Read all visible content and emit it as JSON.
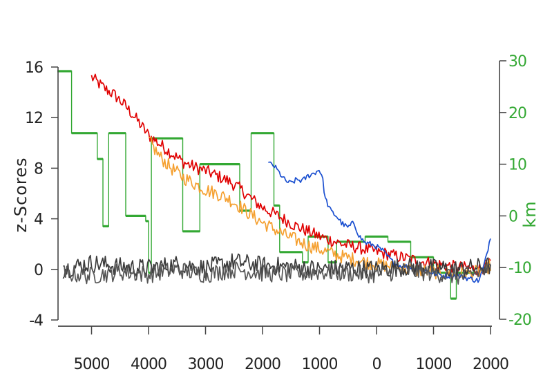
{
  "chart_data": {
    "type": "line",
    "title": "",
    "xlabel": "",
    "ylabel": "z-Scores",
    "y2label": "km",
    "x_axis": {
      "range": [
        -5600,
        2000
      ],
      "ticks": [
        -5000,
        -4000,
        -3000,
        -2000,
        -1000,
        0,
        1000,
        2000
      ],
      "tick_labels": [
        "5000",
        "4000",
        "3000",
        "2000",
        "1000",
        "0",
        "1000",
        "2000"
      ]
    },
    "y_axis": {
      "range": [
        -4,
        16
      ],
      "ticks": [
        -4,
        0,
        4,
        8,
        12,
        16
      ],
      "tick_labels": [
        "-4",
        "0",
        "4",
        "8",
        "12",
        "16"
      ]
    },
    "y2_axis": {
      "range": [
        -20,
        30
      ],
      "ticks": [
        -20,
        -10,
        0,
        10,
        20,
        30
      ],
      "tick_labels": [
        "-20",
        "-10",
        "0",
        "10",
        "20",
        "30"
      ],
      "color": "#33a833"
    },
    "grid": false,
    "legend": "none",
    "series": [
      {
        "color": "#e00000",
        "axis": "left",
        "points": [
          [
            -5000,
            15.2
          ],
          [
            -4800,
            14.4
          ],
          [
            -4600,
            13.8
          ],
          [
            -4400,
            12.9
          ],
          [
            -4200,
            11.8
          ],
          [
            -4000,
            10.6
          ],
          [
            -3800,
            9.9
          ],
          [
            -3600,
            9.2
          ],
          [
            -3400,
            8.5
          ],
          [
            -3200,
            8.1
          ],
          [
            -3000,
            7.8
          ],
          [
            -2800,
            7.4
          ],
          [
            -2600,
            7.0
          ],
          [
            -2400,
            6.4
          ],
          [
            -2200,
            5.6
          ],
          [
            -2000,
            4.9
          ],
          [
            -1800,
            4.4
          ],
          [
            -1600,
            3.9
          ],
          [
            -1400,
            3.4
          ],
          [
            -1200,
            3.0
          ],
          [
            -1000,
            2.6
          ],
          [
            -800,
            2.3
          ],
          [
            -600,
            2.0
          ],
          [
            -400,
            1.8
          ],
          [
            -200,
            1.6
          ],
          [
            0,
            1.4
          ],
          [
            200,
            1.2
          ],
          [
            400,
            1.0
          ],
          [
            600,
            0.8
          ],
          [
            800,
            0.6
          ],
          [
            1000,
            0.5
          ],
          [
            1200,
            0.3
          ],
          [
            1400,
            0.2
          ],
          [
            1600,
            0.1
          ],
          [
            1800,
            0.0
          ],
          [
            2000,
            0.4
          ]
        ],
        "noise": 0.5
      },
      {
        "color": "#f5a030",
        "axis": "left",
        "points": [
          [
            -4000,
            10.2
          ],
          [
            -3800,
            8.9
          ],
          [
            -3600,
            8.0
          ],
          [
            -3400,
            7.3
          ],
          [
            -3200,
            6.8
          ],
          [
            -3000,
            6.3
          ],
          [
            -2800,
            6.0
          ],
          [
            -2600,
            5.6
          ],
          [
            -2400,
            5.0
          ],
          [
            -2200,
            4.3
          ],
          [
            -2000,
            3.7
          ],
          [
            -1800,
            3.2
          ],
          [
            -1600,
            2.7
          ],
          [
            -1400,
            2.3
          ],
          [
            -1200,
            1.9
          ],
          [
            -1000,
            1.6
          ],
          [
            -800,
            1.3
          ],
          [
            -600,
            1.0
          ],
          [
            -400,
            0.8
          ],
          [
            -200,
            0.6
          ],
          [
            0,
            0.4
          ],
          [
            200,
            0.3
          ],
          [
            400,
            0.1
          ],
          [
            600,
            0.0
          ],
          [
            800,
            -0.1
          ],
          [
            1000,
            -0.2
          ],
          [
            1200,
            -0.3
          ],
          [
            1400,
            -0.4
          ],
          [
            1600,
            -0.3
          ],
          [
            1800,
            -0.2
          ],
          [
            2000,
            0.3
          ]
        ],
        "noise": 0.55
      },
      {
        "color": "#1a4fd0",
        "axis": "left",
        "points": [
          [
            -1900,
            8.4
          ],
          [
            -1800,
            8.2
          ],
          [
            -1700,
            7.6
          ],
          [
            -1600,
            7.0
          ],
          [
            -1500,
            6.8
          ],
          [
            -1400,
            7.1
          ],
          [
            -1300,
            7.0
          ],
          [
            -1200,
            7.4
          ],
          [
            -1100,
            7.6
          ],
          [
            -1000,
            7.9
          ],
          [
            -950,
            7.3
          ],
          [
            -900,
            5.6
          ],
          [
            -800,
            4.6
          ],
          [
            -700,
            4.2
          ],
          [
            -600,
            3.6
          ],
          [
            -500,
            3.3
          ],
          [
            -400,
            3.7
          ],
          [
            -300,
            2.6
          ],
          [
            -200,
            2.1
          ],
          [
            -100,
            2.0
          ],
          [
            0,
            1.8
          ],
          [
            100,
            1.5
          ],
          [
            200,
            1.0
          ],
          [
            300,
            0.5
          ],
          [
            400,
            0.3
          ],
          [
            600,
            0.2
          ],
          [
            800,
            0.0
          ],
          [
            1000,
            -0.3
          ],
          [
            1200,
            -0.5
          ],
          [
            1400,
            -0.5
          ],
          [
            1600,
            -0.7
          ],
          [
            1800,
            -0.9
          ],
          [
            1900,
            0.5
          ],
          [
            2000,
            2.6
          ]
        ],
        "noise": 0.22
      },
      {
        "color": "#3a3a3a",
        "axis": "left",
        "points": [
          [
            -5500,
            0.0
          ],
          [
            -5000,
            0.5
          ],
          [
            -4500,
            0.2
          ],
          [
            -4000,
            0.1
          ],
          [
            -3500,
            0.4
          ],
          [
            -3000,
            0.1
          ],
          [
            -2500,
            0.6
          ],
          [
            -2000,
            0.3
          ],
          [
            -1500,
            0.2
          ],
          [
            -1000,
            0.0
          ],
          [
            -500,
            0.1
          ],
          [
            0,
            0.0
          ],
          [
            500,
            0.2
          ],
          [
            1000,
            0.1
          ],
          [
            1500,
            0.0
          ],
          [
            2000,
            0.3
          ]
        ],
        "noise": 0.75
      },
      {
        "color": "#555555",
        "axis": "left",
        "points": [
          [
            -5500,
            -0.3
          ],
          [
            -5000,
            -0.5
          ],
          [
            -4500,
            -0.2
          ],
          [
            -4000,
            -0.4
          ],
          [
            -3500,
            0.0
          ],
          [
            -3000,
            -0.4
          ],
          [
            -2500,
            0.0
          ],
          [
            -2000,
            -0.3
          ],
          [
            -1500,
            -0.4
          ],
          [
            -1000,
            -0.2
          ],
          [
            -500,
            -0.3
          ],
          [
            0,
            -0.4
          ],
          [
            500,
            -0.1
          ],
          [
            1000,
            -0.3
          ],
          [
            1500,
            -0.6
          ],
          [
            2000,
            0.0
          ]
        ],
        "noise": 0.7
      },
      {
        "color": "#33a833",
        "axis": "right",
        "step": true,
        "points": [
          [
            -5600,
            28
          ],
          [
            -5350,
            28
          ],
          [
            -5350,
            16
          ],
          [
            -4900,
            16
          ],
          [
            -4900,
            11
          ],
          [
            -4800,
            11
          ],
          [
            -4800,
            -2
          ],
          [
            -4700,
            -2
          ],
          [
            -4700,
            16
          ],
          [
            -4400,
            16
          ],
          [
            -4400,
            0
          ],
          [
            -4050,
            0
          ],
          [
            -4050,
            -1
          ],
          [
            -4000,
            -1
          ],
          [
            -4000,
            -11
          ],
          [
            -3950,
            -11
          ],
          [
            -3950,
            15
          ],
          [
            -3400,
            15
          ],
          [
            -3400,
            -3
          ],
          [
            -3100,
            -3
          ],
          [
            -3100,
            10
          ],
          [
            -2400,
            10
          ],
          [
            -2400,
            1
          ],
          [
            -2200,
            1
          ],
          [
            -2200,
            16
          ],
          [
            -1800,
            16
          ],
          [
            -1800,
            2
          ],
          [
            -1700,
            2
          ],
          [
            -1700,
            -7
          ],
          [
            -1300,
            -7
          ],
          [
            -1300,
            -9
          ],
          [
            -1200,
            -9
          ],
          [
            -1200,
            -4
          ],
          [
            -850,
            -4
          ],
          [
            -850,
            -9
          ],
          [
            -700,
            -9
          ],
          [
            -700,
            -5
          ],
          [
            -200,
            -5
          ],
          [
            -200,
            -4
          ],
          [
            200,
            -4
          ],
          [
            200,
            -5
          ],
          [
            600,
            -5
          ],
          [
            600,
            -8
          ],
          [
            1000,
            -8
          ],
          [
            1000,
            -11
          ],
          [
            1300,
            -11
          ],
          [
            1300,
            -16
          ],
          [
            1400,
            -16
          ],
          [
            1400,
            -11
          ],
          [
            1800,
            -11
          ]
        ]
      }
    ]
  }
}
